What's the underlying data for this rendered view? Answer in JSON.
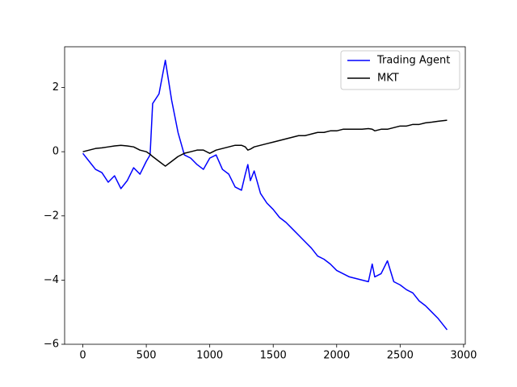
{
  "chart_data": {
    "type": "line",
    "x": [
      0,
      50,
      100,
      150,
      200,
      250,
      300,
      350,
      400,
      450,
      500,
      530,
      550,
      600,
      650,
      700,
      750,
      800,
      850,
      900,
      950,
      1000,
      1050,
      1100,
      1150,
      1200,
      1250,
      1280,
      1300,
      1320,
      1350,
      1400,
      1450,
      1500,
      1550,
      1600,
      1650,
      1700,
      1750,
      1800,
      1850,
      1900,
      1950,
      2000,
      2050,
      2100,
      2150,
      2200,
      2250,
      2280,
      2300,
      2350,
      2400,
      2450,
      2500,
      2550,
      2600,
      2650,
      2700,
      2750,
      2800,
      2870
    ],
    "series": [
      {
        "name": "Trading Agent",
        "color": "#0000ff",
        "values": [
          -0.05,
          -0.3,
          -0.55,
          -0.65,
          -0.95,
          -0.75,
          -1.15,
          -0.9,
          -0.5,
          -0.7,
          -0.3,
          -0.1,
          1.5,
          1.8,
          2.85,
          1.6,
          0.6,
          -0.1,
          -0.2,
          -0.4,
          -0.55,
          -0.2,
          -0.1,
          -0.55,
          -0.7,
          -1.1,
          -1.2,
          -0.7,
          -0.4,
          -0.9,
          -0.6,
          -1.3,
          -1.6,
          -1.8,
          -2.05,
          -2.2,
          -2.4,
          -2.6,
          -2.8,
          -3.0,
          -3.25,
          -3.35,
          -3.5,
          -3.7,
          -3.8,
          -3.9,
          -3.95,
          -4.0,
          -4.05,
          -3.5,
          -3.9,
          -3.8,
          -3.4,
          -4.05,
          -4.15,
          -4.3,
          -4.4,
          -4.65,
          -4.8,
          -5.0,
          -5.2,
          -5.55
        ]
      },
      {
        "name": "MKT",
        "color": "#000000",
        "values": [
          0,
          0.05,
          0.1,
          0.12,
          0.15,
          0.18,
          0.2,
          0.18,
          0.15,
          0.05,
          0,
          -0.08,
          -0.15,
          -0.3,
          -0.45,
          -0.3,
          -0.15,
          -0.05,
          0,
          0.05,
          0.05,
          -0.05,
          0.05,
          0.1,
          0.15,
          0.2,
          0.2,
          0.15,
          0.05,
          0.08,
          0.15,
          0.2,
          0.25,
          0.3,
          0.35,
          0.4,
          0.45,
          0.5,
          0.5,
          0.55,
          0.6,
          0.6,
          0.65,
          0.65,
          0.7,
          0.7,
          0.7,
          0.7,
          0.72,
          0.7,
          0.65,
          0.7,
          0.7,
          0.75,
          0.8,
          0.8,
          0.85,
          0.85,
          0.9,
          0.92,
          0.95,
          0.98
        ]
      }
    ],
    "xlim": [
      -143.5,
      3013.5
    ],
    "xticks": [
      0,
      500,
      1000,
      1500,
      2000,
      2500,
      3000
    ],
    "ylim": [
      -6.0,
      3.27
    ],
    "yticks": [
      {
        "value": -6,
        "label": "−6"
      },
      {
        "value": -4,
        "label": "−4"
      },
      {
        "value": -2,
        "label": "−2"
      },
      0,
      2
    ],
    "legend": "upper right",
    "grid": false
  }
}
